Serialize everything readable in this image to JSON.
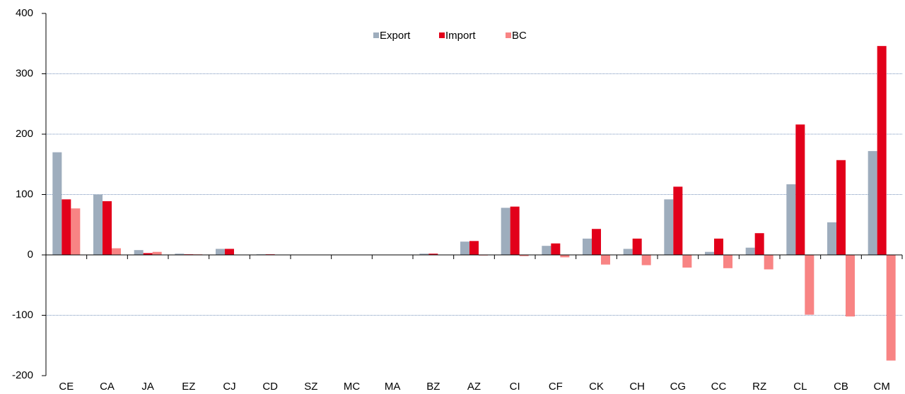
{
  "chart_data": {
    "type": "bar",
    "categories": [
      "CE",
      "CA",
      "JA",
      "EZ",
      "CJ",
      "CD",
      "SZ",
      "MC",
      "MA",
      "BZ",
      "AZ",
      "CI",
      "CF",
      "CK",
      "CH",
      "CG",
      "CC",
      "RZ",
      "CL",
      "CB",
      "CM"
    ],
    "series": [
      {
        "name": "Export",
        "color": "#9eadbd",
        "values": [
          170,
          100,
          8,
          2,
          10,
          1,
          0.5,
          0.5,
          0.5,
          2,
          22,
          78,
          15,
          27,
          10,
          92,
          5,
          12,
          117,
          54,
          172
        ]
      },
      {
        "name": "Import",
        "color": "#e2001a",
        "values": [
          92,
          89,
          3,
          1,
          10,
          1,
          0.5,
          0.5,
          0.5,
          2,
          23,
          80,
          19,
          43,
          27,
          113,
          27,
          36,
          216,
          157,
          346
        ]
      },
      {
        "name": "BC",
        "color": "#f88484",
        "values": [
          77,
          11,
          5,
          1,
          0,
          0,
          0,
          0,
          0,
          0,
          -1,
          -2,
          -4,
          -16,
          -17,
          -21,
          -22,
          -24,
          -99,
          -102,
          -175
        ]
      }
    ],
    "ylim": [
      -200,
      400
    ],
    "yticks": [
      -200,
      -100,
      0,
      100,
      200,
      300,
      400
    ],
    "grid": true,
    "legend": "top"
  }
}
